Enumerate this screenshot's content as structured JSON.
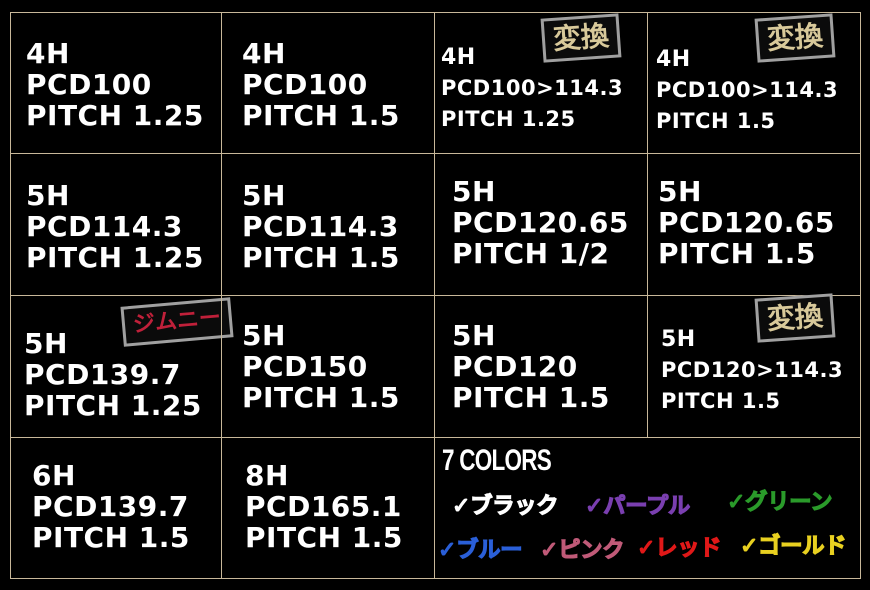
{
  "cells": [
    {
      "lines": [
        "4H",
        "PCD100",
        "PITCH 1.25"
      ]
    },
    {
      "lines": [
        "4H",
        "PCD100",
        "PITCH 1.5"
      ]
    },
    {
      "lines": [
        "4H",
        "PCD100>114.3",
        "PITCH 1.25"
      ],
      "badge": "変換"
    },
    {
      "lines": [
        "4H",
        "PCD100>114.3",
        "PITCH 1.5"
      ],
      "badge": "変換"
    },
    {
      "lines": [
        "5H",
        "PCD114.3",
        "PITCH 1.25"
      ]
    },
    {
      "lines": [
        "5H",
        "PCD114.3",
        "PITCH 1.5"
      ]
    },
    {
      "lines": [
        "5H",
        "PCD120.65",
        "PITCH 1/2"
      ]
    },
    {
      "lines": [
        "5H",
        "PCD120.65",
        "PITCH 1.5"
      ]
    },
    {
      "lines": [
        "5H",
        "PCD139.7",
        "PITCH 1.25"
      ],
      "badge": "ジムニー"
    },
    {
      "lines": [
        "5H",
        "PCD150",
        "PITCH 1.5"
      ]
    },
    {
      "lines": [
        "5H",
        "PCD120",
        "PITCH 1.5"
      ]
    },
    {
      "lines": [
        "5H",
        "PCD120>114.3",
        "PITCH 1.5"
      ],
      "badge": "変換"
    },
    {
      "lines": [
        "6H",
        "PCD139.7",
        "PITCH 1.5"
      ]
    },
    {
      "lines": [
        "8H",
        "PCD165.1",
        "PITCH 1.5"
      ]
    }
  ],
  "badge_colors": {
    "henkan": "#d8c99a",
    "jimny": "#c0203a"
  },
  "colors_section": {
    "title": "7 COLORS",
    "items": [
      {
        "label": "✓ブラック",
        "color": "#ffffff"
      },
      {
        "label": "✓パープル",
        "color": "#7a3fb0"
      },
      {
        "label": "✓グリーン",
        "color": "#2a9a2a"
      },
      {
        "label": "✓ブルー",
        "color": "#2a5fd8"
      },
      {
        "label": "✓ピンク",
        "color": "#c05a78"
      },
      {
        "label": "✓レッド",
        "color": "#e01818"
      },
      {
        "label": "✓ゴールド",
        "color": "#e8d020"
      }
    ]
  }
}
